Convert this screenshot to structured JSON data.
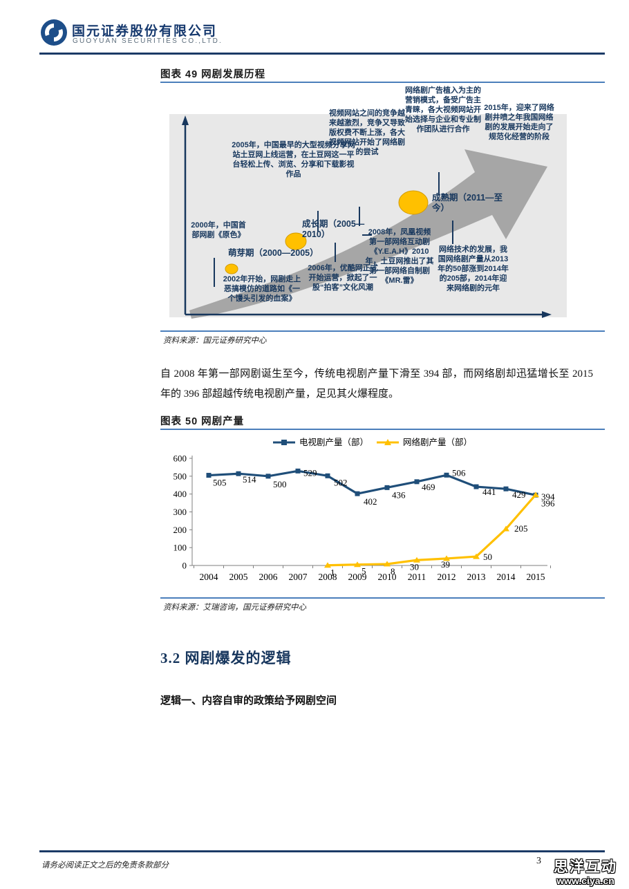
{
  "header": {
    "company_cn": "国元证券股份有限公司",
    "company_en": "GUOYUAN SECURITIES CO.,LTD."
  },
  "figure49": {
    "title": "图表 49 网剧发展历程",
    "source": "资料来源：国元证券研究中心",
    "blocks": [
      "2005年，中国最早的大型视频分享网站土豆网上线运营，在土豆网这一平台轻松上传、浏览、分享和下载影视作品",
      "视频网站之间的竞争越来越激烈，竞争又导致版权费不断上涨，各大视频网站开始了网络剧的尝试",
      "网络剧广告植入为主的营销模式，备受广告主青睐，各大视频网站开始选择与企业和专业制作团队进行合作",
      "2015年，迎来了网络剧井喷之年我国网络剧的发展开始走向了规范化经营的阶段",
      "2000年，中国首部网剧《原色》",
      "萌芽期（2000—2005）",
      "2002年开始，网剧走上恶搞模仿的道路如《一个馒头引发的血案》",
      "成长期（2005—2010）",
      "2006年，优酷网正式开始运营，掀起了一股“拍客”文化风潮",
      "2008年，凤凰视频第一部网络互动剧《Y.E.A.H》2010年，土豆网推出了其第一部网络自制剧《MR.雷》",
      "成熟期（2011—至今）",
      "网络技术的发展，我国网络剧产量从2013年的50部涨到2014年的205部，2014年迎来网络剧的元年"
    ],
    "colors": {
      "stage_dot": "#ffc000",
      "arrow": "#a6a6a6",
      "note_text": "#17375d",
      "panel_bg": "#e8e8e8"
    }
  },
  "paragraph1": "自 2008 年第一部网剧诞生至今，传统电视剧产量下滑至 394 部，而网络剧却迅猛增长至 2015 年的 396 部超越传统电视剧产量，足见其火爆程度。",
  "figure50": {
    "title": "图表 50 网剧产量",
    "source": "资料来源：艾瑞咨询，国元证券研究中心"
  },
  "chart_data": {
    "type": "line",
    "title": "网剧产量",
    "categories": [
      "2004",
      "2005",
      "2006",
      "2007",
      "2008",
      "2009",
      "2010",
      "2011",
      "2012",
      "2013",
      "2014",
      "2015"
    ],
    "series": [
      {
        "name": "电视剧产量（部）",
        "color": "#1f4e79",
        "marker": "square",
        "values": [
          505,
          514,
          500,
          529,
          502,
          402,
          436,
          469,
          506,
          441,
          429,
          394
        ]
      },
      {
        "name": "网络剧产量（部）",
        "color": "#ffc000",
        "marker": "triangle",
        "values": [
          null,
          null,
          null,
          null,
          1,
          5,
          8,
          30,
          39,
          50,
          205,
          396
        ]
      }
    ],
    "ylim": [
      0,
      600
    ],
    "yticks": [
      0,
      100,
      200,
      300,
      400,
      500,
      600
    ],
    "legend_position": "top",
    "grid": false,
    "xlabel": "",
    "ylabel": ""
  },
  "section": {
    "heading": "3.2 网剧爆发的逻辑",
    "paragraph": "逻辑一、内容自审的政策给予网剧空间"
  },
  "footer": {
    "disclaimer": "请务必阅读正文之后的免责条款部分",
    "page_number": "3",
    "watermark_line1": "思洋互动",
    "watermark_line2": "www.ciya.cn"
  }
}
